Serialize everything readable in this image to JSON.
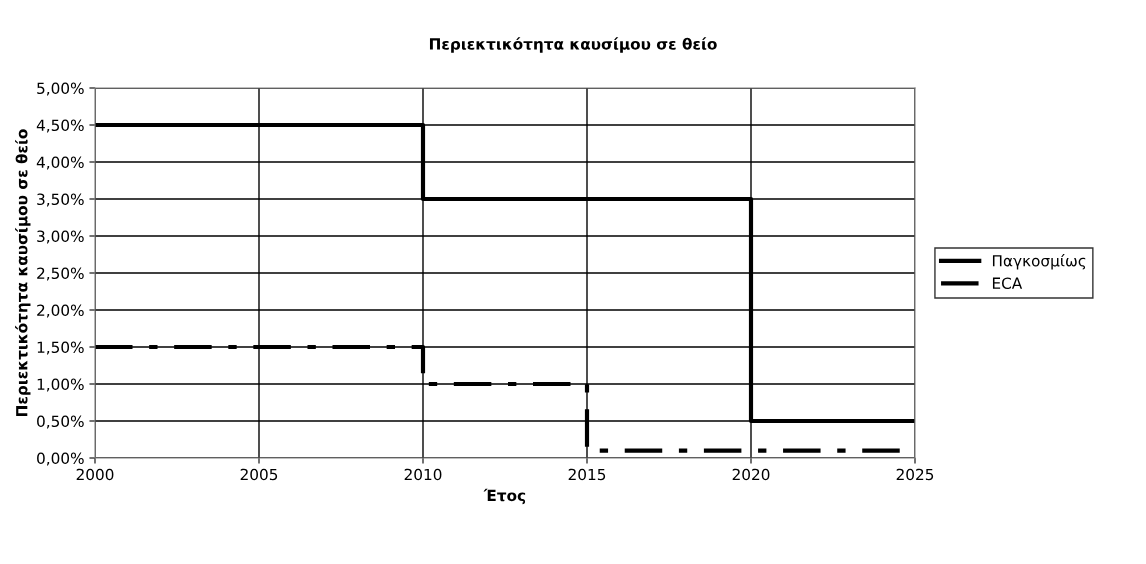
{
  "chart_data": {
    "type": "step",
    "title": "Περιεκτικότητα καυσίμου σε θείο",
    "xlabel": "Έτος",
    "ylabel": "Περιεκτικότητα καυσίμου σε θείο",
    "series": [
      {
        "name": "Παγκοσμίως",
        "color": "#000000",
        "x": [
          2000,
          2010,
          2020,
          2025
        ],
        "values": [
          4.5,
          3.5,
          0.5,
          0.5
        ],
        "line_style": "solid"
      },
      {
        "name": "ECA",
        "color": "#000000",
        "x": [
          2000,
          2010,
          2015,
          2025
        ],
        "values": [
          1.5,
          1.0,
          0.1,
          0.1
        ],
        "line_style": "dashed"
      }
    ],
    "xlim": [
      2000,
      2025
    ],
    "xticks": [
      2000,
      2005,
      2010,
      2015,
      2020,
      2025
    ],
    "ylim": [
      0,
      5
    ],
    "yticks": [
      {
        "value": 0,
        "label": "0,00%"
      },
      {
        "value": 0.5,
        "label": "0,50%"
      },
      {
        "value": 1,
        "label": "1,00%"
      },
      {
        "value": 1.5,
        "label": "1,50%"
      },
      {
        "value": 2,
        "label": "2,00%"
      },
      {
        "value": 2.5,
        "label": "2,50%"
      },
      {
        "value": 3,
        "label": "3,00%"
      },
      {
        "value": 3.5,
        "label": "3,50%"
      },
      {
        "value": 4,
        "label": "4,00%"
      },
      {
        "value": 4.5,
        "label": "4,50%"
      },
      {
        "value": 5,
        "label": "5,00%"
      }
    ],
    "grid": true,
    "legend": "right",
    "marker": "none"
  }
}
